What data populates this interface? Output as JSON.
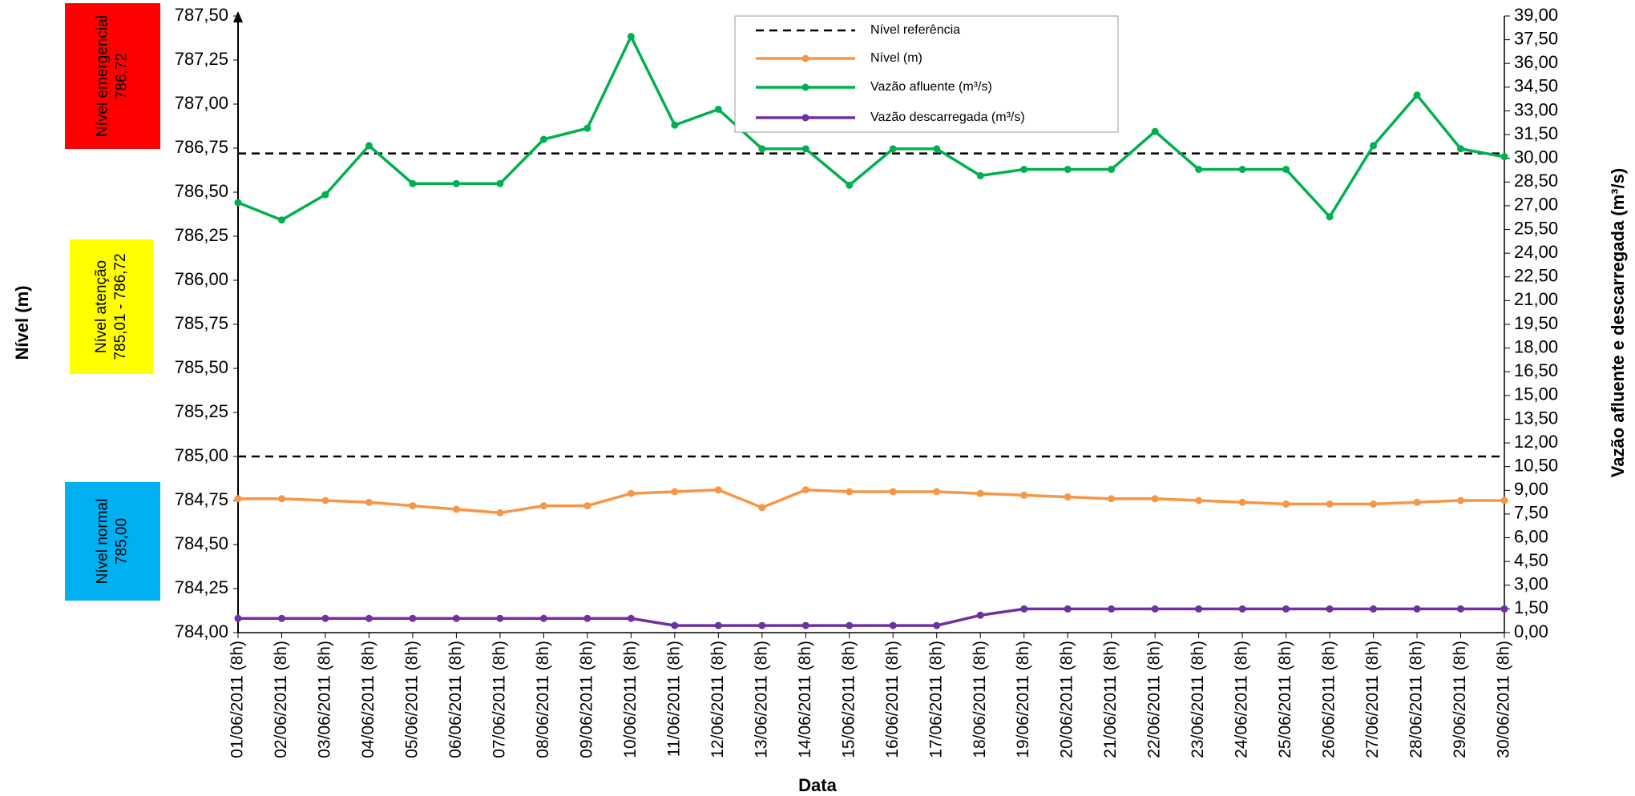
{
  "chart_data": {
    "type": "line",
    "y_label": "Nível (m)",
    "y2_label": "Vazão afluente e descarregada (m³/s)",
    "x_label": "Data",
    "categories": [
      "01/06/2011 (8h)",
      "02/06/2011 (8h)",
      "03/06/2011 (8h)",
      "04/06/2011 (8h)",
      "05/06/2011 (8h)",
      "06/06/2011 (8h)",
      "07/06/2011 (8h)",
      "08/06/2011 (8h)",
      "09/06/2011 (8h)",
      "10/06/2011 (8h)",
      "11/06/2011 (8h)",
      "12/06/2011 (8h)",
      "13/06/2011 (8h)",
      "14/06/2011 (8h)",
      "15/06/2011 (8h)",
      "16/06/2011 (8h)",
      "17/06/2011 (8h)",
      "18/06/2011 (8h)",
      "19/06/2011 (8h)",
      "20/06/2011 (8h)",
      "21/06/2011 (8h)",
      "22/06/2011 (8h)",
      "23/06/2011 (8h)",
      "24/06/2011 (8h)",
      "25/06/2011 (8h)",
      "26/06/2011 (8h)",
      "27/06/2011 (8h)",
      "28/06/2011 (8h)",
      "29/06/2011 (8h)",
      "30/06/2011 (8h)"
    ],
    "reference": {
      "name": "Nível referência",
      "color": "#000000",
      "values": [
        786.72,
        785.0
      ]
    },
    "series": [
      {
        "name": "Nível (m)",
        "color": "#f79646",
        "axis": "y",
        "values": [
          784.76,
          784.76,
          784.75,
          784.74,
          784.72,
          784.7,
          784.68,
          784.72,
          784.72,
          784.79,
          784.8,
          784.81,
          784.71,
          784.81,
          784.8,
          784.8,
          784.8,
          784.79,
          784.78,
          784.77,
          784.76,
          784.76,
          784.75,
          784.74,
          784.73,
          784.73,
          784.73,
          784.74,
          784.75,
          784.75
        ]
      },
      {
        "name": "Vazão afluente (m³/s)",
        "color": "#00b050",
        "axis": "y2",
        "values": [
          27.2,
          26.1,
          27.7,
          30.8,
          28.4,
          28.4,
          28.4,
          31.2,
          31.9,
          37.7,
          32.1,
          33.1,
          30.6,
          30.6,
          28.3,
          30.6,
          30.6,
          28.9,
          29.3,
          29.3,
          29.3,
          31.7,
          29.3,
          29.3,
          29.3,
          26.3,
          30.8,
          34.0,
          30.6,
          30.1
        ]
      },
      {
        "name": "Vazão descarregada (m³/s)",
        "color": "#7030a0",
        "axis": "y2",
        "values": [
          0.9,
          0.9,
          0.9,
          0.9,
          0.9,
          0.9,
          0.9,
          0.9,
          0.9,
          0.9,
          0.45,
          0.45,
          0.45,
          0.45,
          0.45,
          0.45,
          0.45,
          1.1,
          1.5,
          1.5,
          1.5,
          1.5,
          1.5,
          1.5,
          1.5,
          1.5,
          1.5,
          1.5,
          1.5,
          1.5
        ]
      }
    ],
    "zones": [
      {
        "label": "Nível emergencial",
        "range": "786,72",
        "color": "#ff0000"
      },
      {
        "label": "Nível atenção",
        "range": "785,01 - 786,72",
        "color": "#ffff00"
      },
      {
        "label": "Nível normal",
        "range": "785,00",
        "color": "#00b0f0"
      }
    ],
    "ylim": [
      784.0,
      787.5
    ],
    "yticks": [
      {
        "value": 784,
        "label": "784,00"
      },
      {
        "value": 784.25,
        "label": "784,25"
      },
      {
        "value": 784.5,
        "label": "784,50"
      },
      {
        "value": 784.75,
        "label": "784,75"
      },
      {
        "value": 785,
        "label": "785,00"
      },
      {
        "value": 785.25,
        "label": "785,25"
      },
      {
        "value": 785.5,
        "label": "785,50"
      },
      {
        "value": 785.75,
        "label": "785,75"
      },
      {
        "value": 786,
        "label": "786,00"
      },
      {
        "value": 786.25,
        "label": "786,25"
      },
      {
        "value": 786.5,
        "label": "786,50"
      },
      {
        "value": 786.75,
        "label": "786,75"
      },
      {
        "value": 787,
        "label": "787,00"
      },
      {
        "value": 787.25,
        "label": "787,25"
      },
      {
        "value": 787.5,
        "label": "787,50"
      }
    ],
    "y2lim": [
      0,
      39
    ],
    "y2ticks": [
      {
        "value": 0,
        "label": "0,00"
      },
      {
        "value": 1.5,
        "label": "1,50"
      },
      {
        "value": 3,
        "label": "3,00"
      },
      {
        "value": 4.5,
        "label": "4,50"
      },
      {
        "value": 6,
        "label": "6,00"
      },
      {
        "value": 7.5,
        "label": "7,50"
      },
      {
        "value": 9,
        "label": "9,00"
      },
      {
        "value": 10.5,
        "label": "10,50"
      },
      {
        "value": 12,
        "label": "12,00"
      },
      {
        "value": 13.5,
        "label": "13,50"
      },
      {
        "value": 15,
        "label": "15,00"
      },
      {
        "value": 16.5,
        "label": "16,50"
      },
      {
        "value": 18,
        "label": "18,00"
      },
      {
        "value": 19.5,
        "label": "19,50"
      },
      {
        "value": 21,
        "label": "21,00"
      },
      {
        "value": 22.5,
        "label": "22,50"
      },
      {
        "value": 24,
        "label": "24,00"
      },
      {
        "value": 25.5,
        "label": "25,50"
      },
      {
        "value": 27,
        "label": "27,00"
      },
      {
        "value": 28.5,
        "label": "28,50"
      },
      {
        "value": 30,
        "label": "30,00"
      },
      {
        "value": 31.5,
        "label": "31,50"
      },
      {
        "value": 33,
        "label": "33,00"
      },
      {
        "value": 34.5,
        "label": "34,50"
      },
      {
        "value": 36,
        "label": "36,00"
      },
      {
        "value": 37.5,
        "label": "37,50"
      },
      {
        "value": 39,
        "label": "39,00"
      }
    ],
    "grid": false
  }
}
